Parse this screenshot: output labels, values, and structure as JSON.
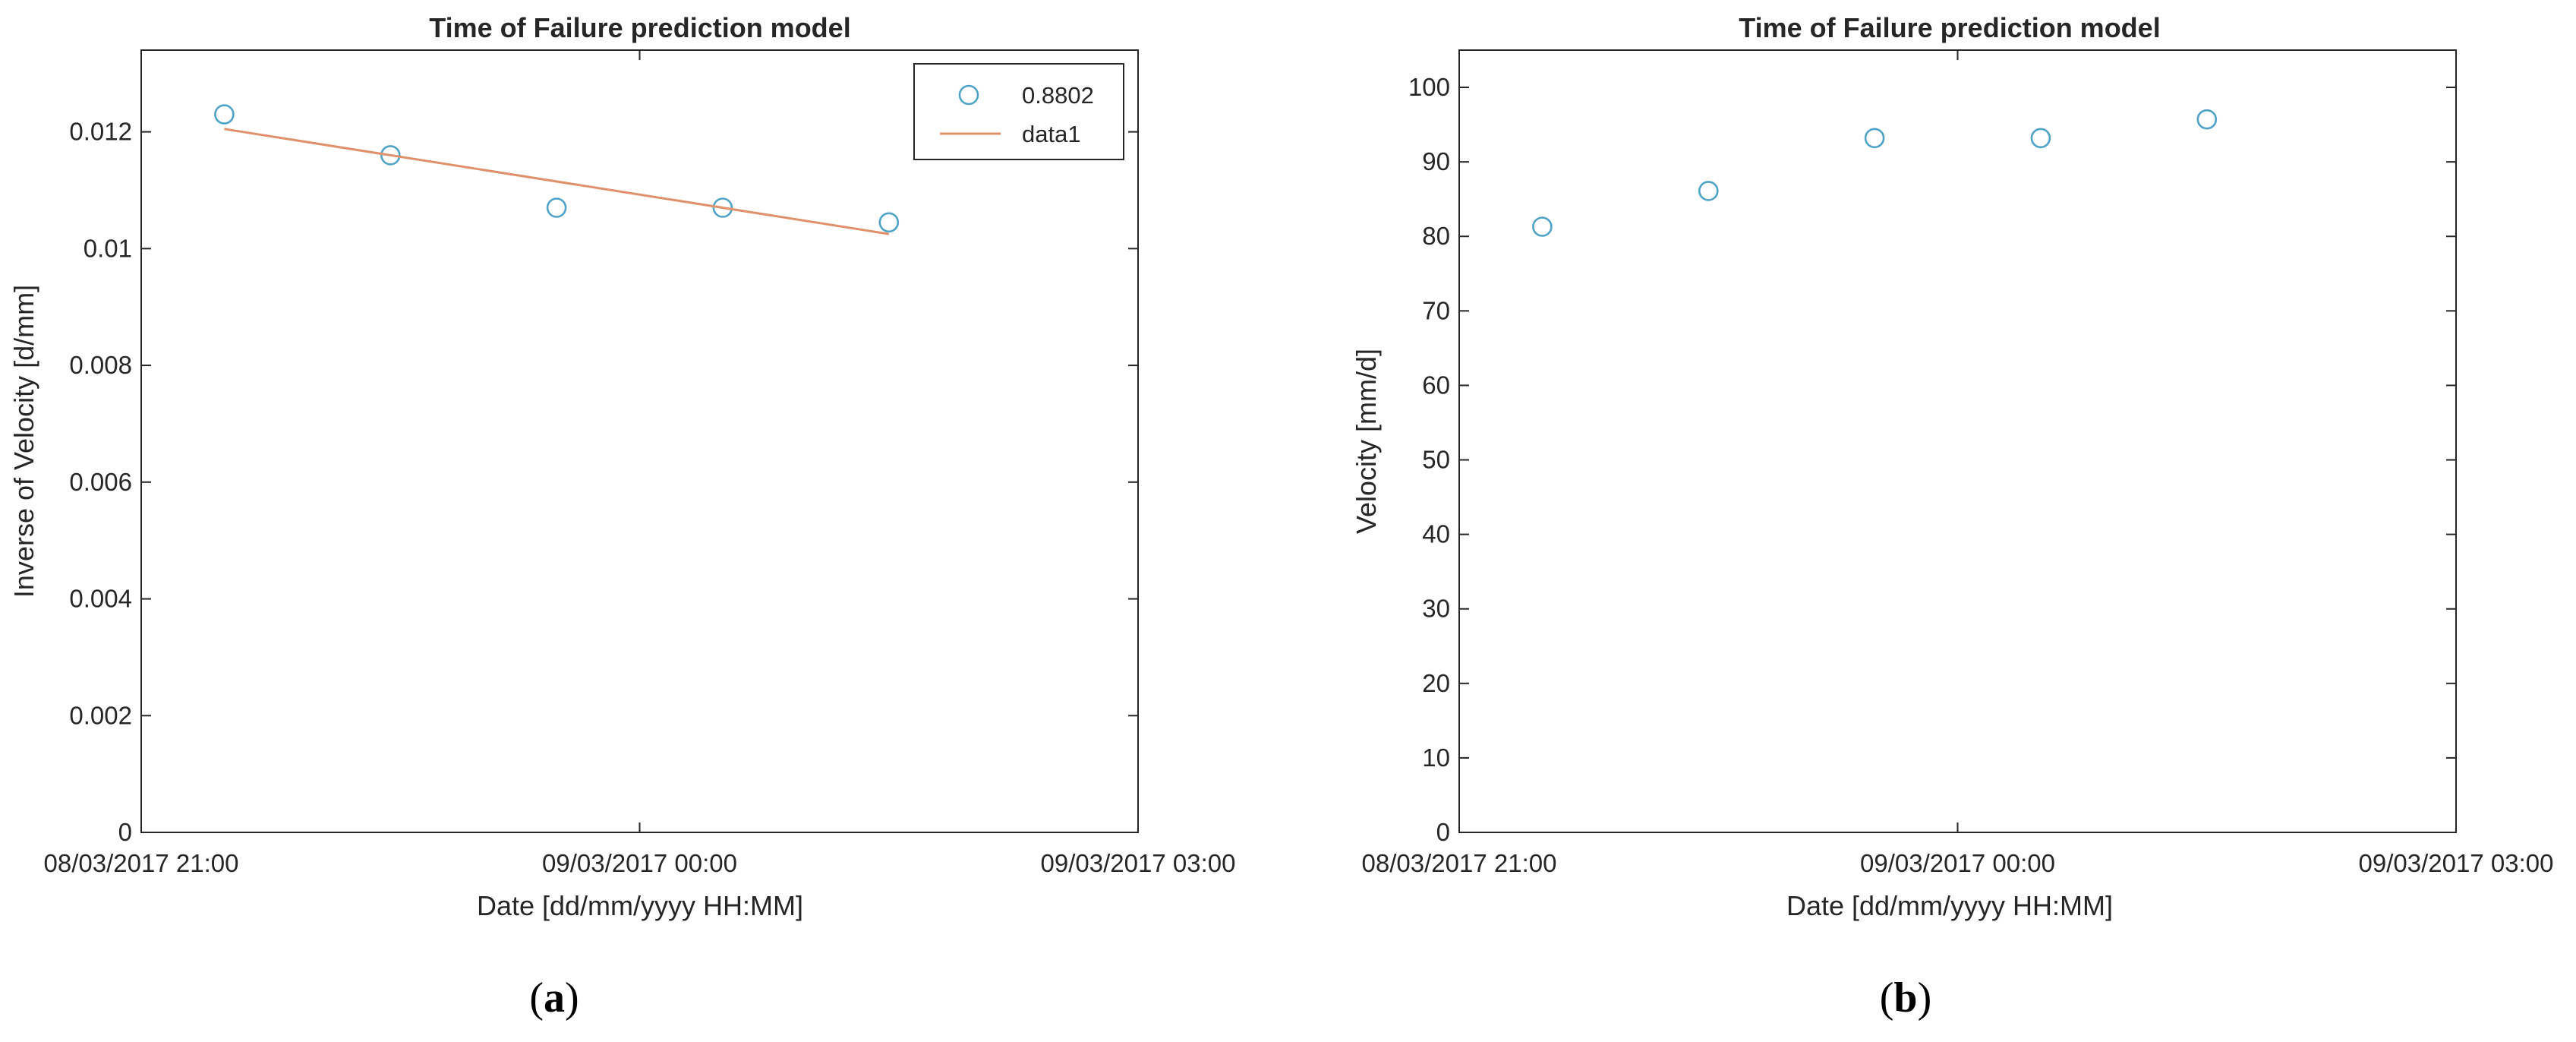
{
  "chart_data": [
    {
      "type": "scatter",
      "title": "Time of Failure prediction model",
      "xlabel": "Date [dd/mm/yyyy HH:MM]",
      "ylabel": "Inverse of Velocity [d/mm]",
      "x_axis": {
        "type": "datetime",
        "range": [
          "08/03/2017 21:00",
          "09/03/2017 03:00"
        ],
        "ticks": [
          "08/03/2017 21:00",
          "09/03/2017 00:00",
          "09/03/2017 03:00"
        ]
      },
      "ylim": [
        0,
        0.0134
      ],
      "y_ticks": [
        0,
        0.002,
        0.004,
        0.006,
        0.008,
        0.01,
        0.012
      ],
      "y_tick_labels": [
        "0",
        "0.002",
        "0.004",
        "0.006",
        "0.008",
        "0.01",
        "0.012"
      ],
      "grid": false,
      "legend": {
        "placement": "top-right",
        "entries": [
          {
            "label": "0.8802",
            "marker": "circle",
            "color": "#4fa3c7"
          },
          {
            "label": "data1",
            "marker": "line",
            "color": "#e0916c"
          }
        ]
      },
      "series": [
        {
          "name": "0.8802",
          "style": "markers",
          "color": "#4fa3c7",
          "x": [
            "08/03/2017 21:30",
            "08/03/2017 22:30",
            "08/03/2017 23:30",
            "09/03/2017 00:30",
            "09/03/2017 01:30"
          ],
          "y": [
            0.0123,
            0.0116,
            0.0107,
            0.0107,
            0.01045
          ]
        },
        {
          "name": "data1",
          "style": "line",
          "color": "#e0916c",
          "x": [
            "08/03/2017 21:30",
            "09/03/2017 01:30"
          ],
          "y": [
            0.01205,
            0.01025
          ]
        }
      ],
      "caption": "a"
    },
    {
      "type": "scatter",
      "title": "Time of Failure prediction model",
      "xlabel": "Date [dd/mm/yyyy HH:MM]",
      "ylabel": "Velocity [mm/d]",
      "x_axis": {
        "type": "datetime",
        "range": [
          "08/03/2017 21:00",
          "09/03/2017 03:00"
        ],
        "ticks": [
          "08/03/2017 21:00",
          "09/03/2017 00:00",
          "09/03/2017 03:00"
        ]
      },
      "ylim": [
        0,
        105
      ],
      "y_ticks": [
        0,
        10,
        20,
        30,
        40,
        50,
        60,
        70,
        80,
        90,
        100
      ],
      "y_tick_labels": [
        "0",
        "10",
        "20",
        "30",
        "40",
        "50",
        "60",
        "70",
        "80",
        "90",
        "100"
      ],
      "grid": false,
      "series": [
        {
          "style": "markers",
          "color": "#4fa3c7",
          "x": [
            "08/03/2017 21:30",
            "08/03/2017 22:30",
            "08/03/2017 23:30",
            "09/03/2017 00:30",
            "09/03/2017 01:30"
          ],
          "y": [
            81.3,
            86.1,
            93.2,
            93.2,
            95.7
          ]
        }
      ],
      "caption": "b"
    }
  ]
}
